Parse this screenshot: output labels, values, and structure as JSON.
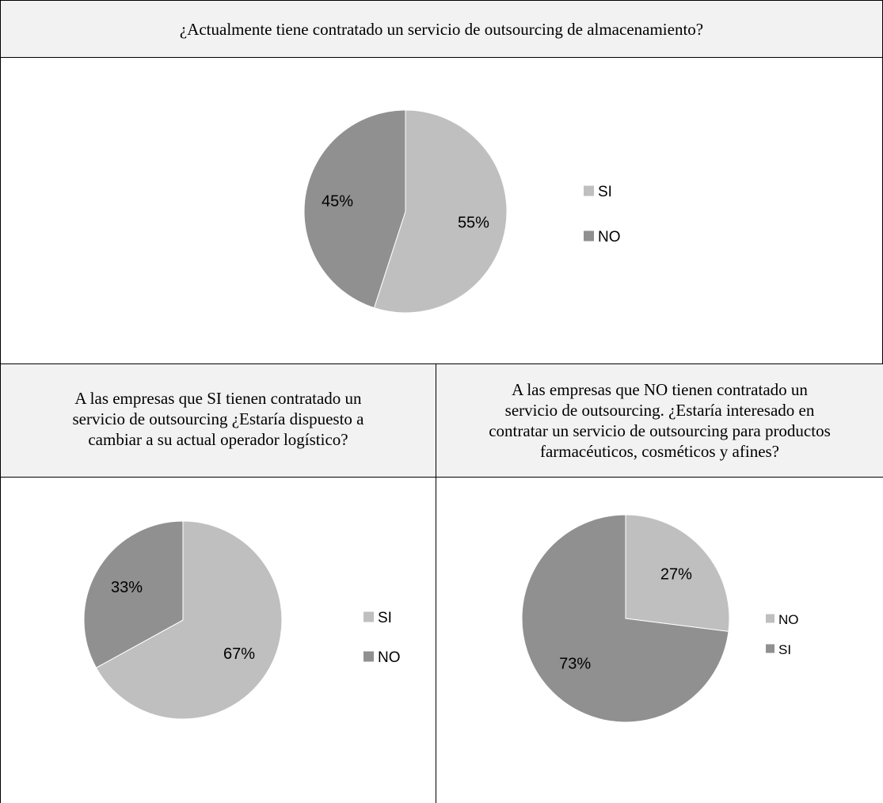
{
  "titles": {
    "top": "¿Actualmente tiene contratado un servicio de outsourcing de almacenamiento?",
    "left": [
      "A las empresas que SI tienen contratado un",
      "servicio de outsourcing ¿Estaría dispuesto a",
      "cambiar a su actual operador logístico?"
    ],
    "right": [
      "A las empresas que NO tienen contratado un",
      "servicio de outsourcing. ¿Estaría interesado en",
      "contratar un servicio de outsourcing para productos",
      "farmacéuticos, cosméticos y afines?"
    ]
  },
  "colors": {
    "light": "#bfbfbf",
    "dark": "#909090"
  },
  "chart_data": [
    {
      "type": "pie",
      "categories": [
        "SI",
        "NO"
      ],
      "values": [
        55,
        45
      ],
      "labels": [
        "55%",
        "45%"
      ],
      "legend": "right"
    },
    {
      "type": "pie",
      "categories": [
        "SI",
        "NO"
      ],
      "values": [
        67,
        33
      ],
      "labels": [
        "67%",
        "33%"
      ],
      "legend": "right"
    },
    {
      "type": "pie",
      "categories": [
        "NO",
        "SI"
      ],
      "values": [
        27,
        73
      ],
      "labels": [
        "27%",
        "73%"
      ],
      "legend": "right"
    }
  ]
}
